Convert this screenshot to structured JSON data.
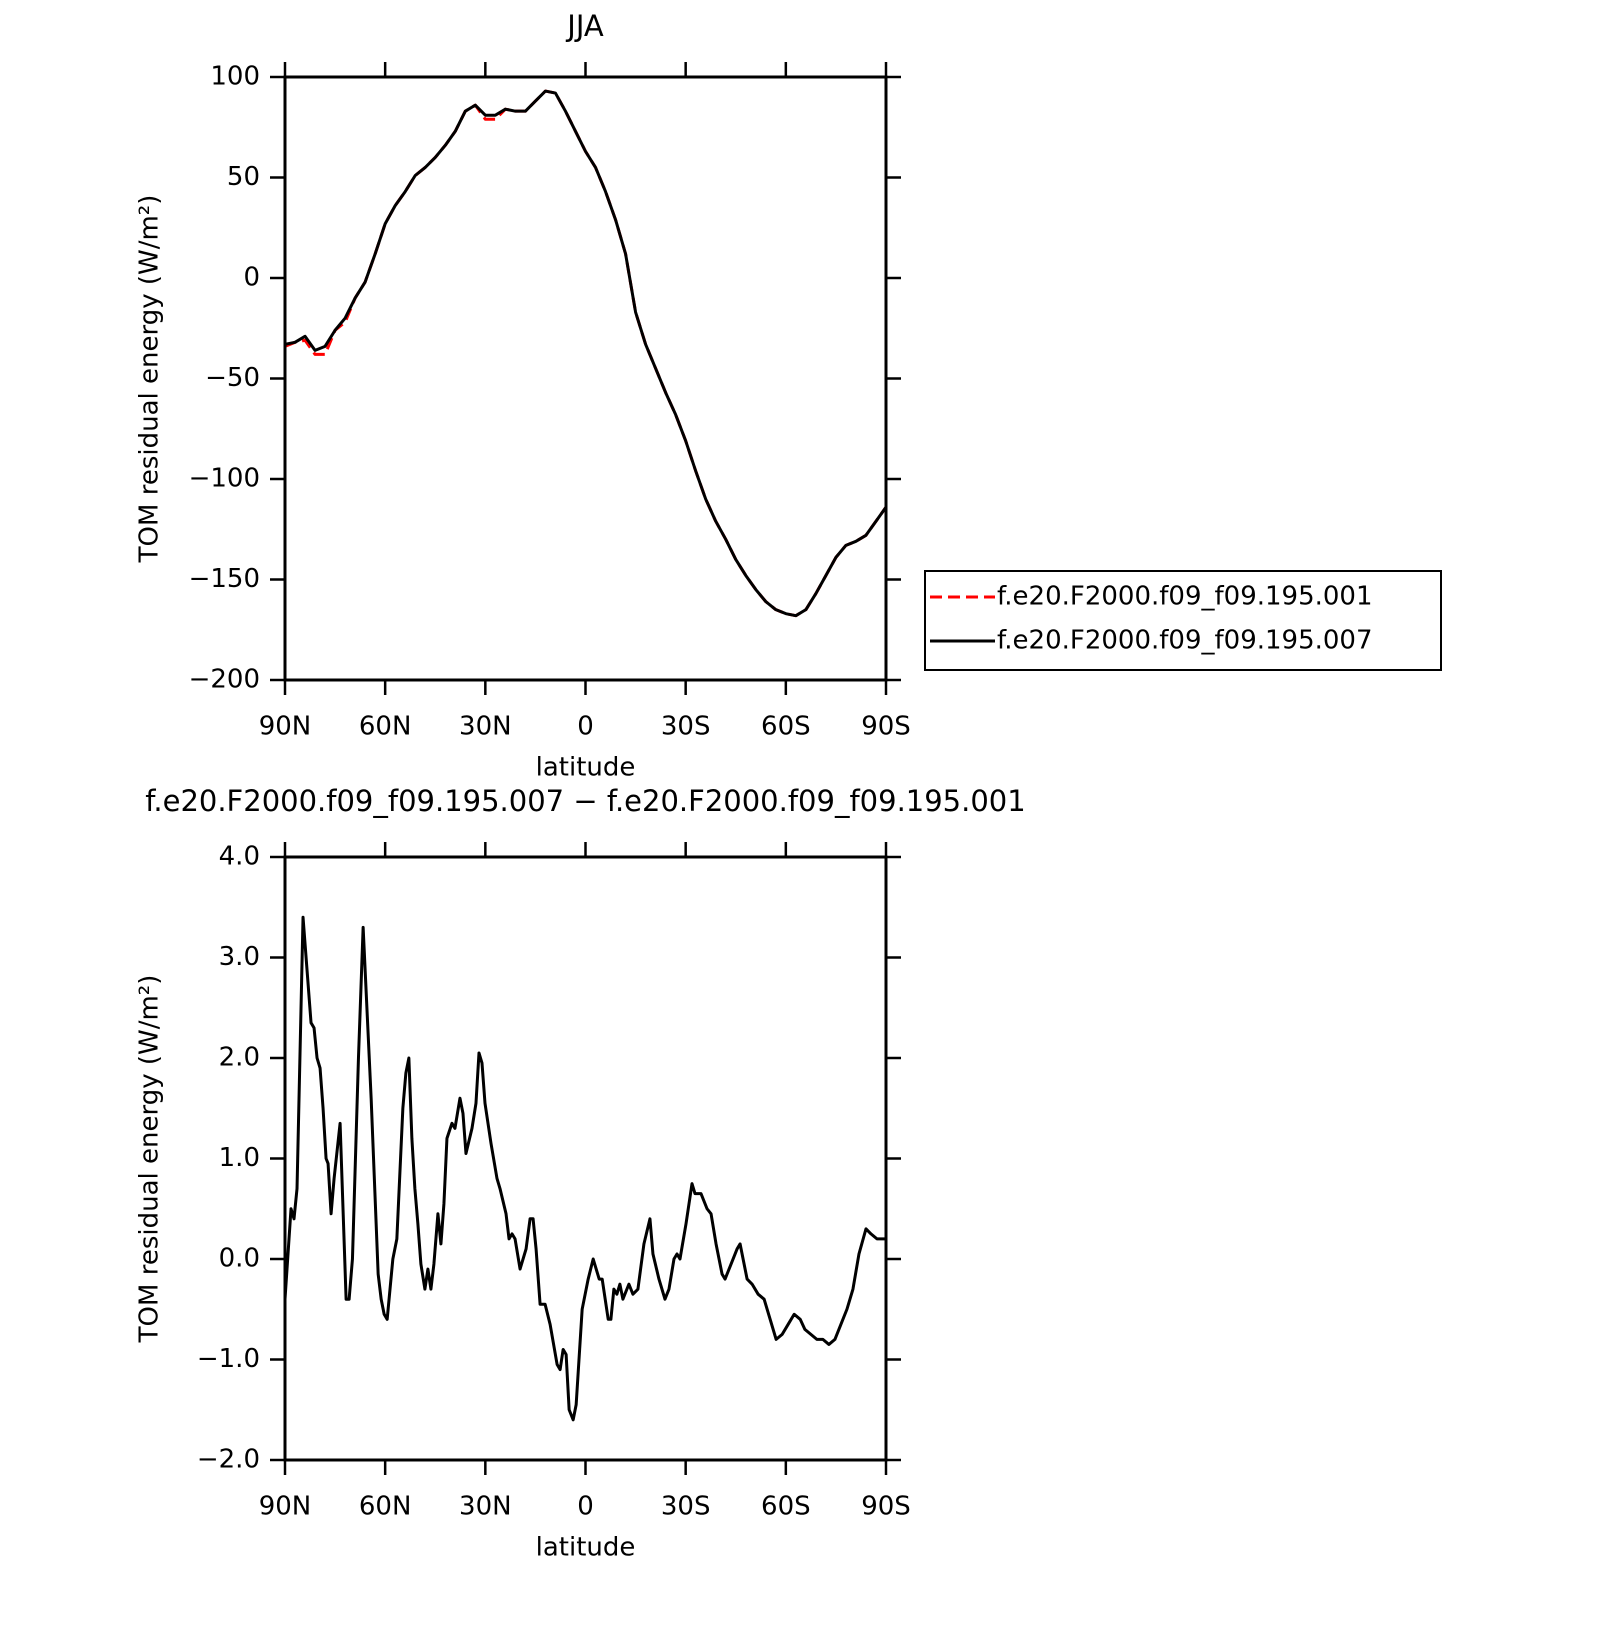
{
  "chart_data": [
    {
      "type": "line",
      "title": "JJA",
      "xlabel": "latitude",
      "ylabel": "TOM residual energy (W/m²)",
      "xlim": [
        90,
        -90
      ],
      "ylim": [
        -200,
        100
      ],
      "xticks": [
        {
          "value": 90,
          "label": "90N"
        },
        {
          "value": 60,
          "label": "60N"
        },
        {
          "value": 30,
          "label": "30N"
        },
        0,
        {
          "value": -30,
          "label": "30S"
        },
        {
          "value": -60,
          "label": "60S"
        },
        {
          "value": -90,
          "label": "90S"
        }
      ],
      "yticks": [
        {
          "value": -200,
          "label": "−200"
        },
        {
          "value": -150,
          "label": "−150"
        },
        {
          "value": -100,
          "label": "−100"
        },
        {
          "value": -50,
          "label": "−50"
        },
        0,
        50,
        100
      ],
      "legend": "right",
      "x": [
        90,
        87,
        84,
        81,
        78,
        75,
        72,
        69,
        66,
        63,
        60,
        57,
        54,
        51,
        48,
        45,
        42,
        39,
        36,
        33,
        30,
        27,
        24,
        21,
        18,
        15,
        12,
        9,
        6,
        3,
        0,
        -3,
        -6,
        -9,
        -12,
        -15,
        -18,
        -21,
        -24,
        -27,
        -30,
        -33,
        -36,
        -39,
        -42,
        -45,
        -48,
        -51,
        -54,
        -57,
        -60,
        -63,
        -66,
        -69,
        -72,
        -75,
        -78,
        -81,
        -84,
        -87,
        -90
      ],
      "series": [
        {
          "name": "f.e20.F2000.f09_f09.195.001",
          "color": "#ff0000",
          "dash": true,
          "values": [
            -34,
            -32,
            -31,
            -38,
            -38,
            -26,
            -22,
            -10,
            -2,
            12,
            27,
            36,
            43,
            51,
            55,
            60,
            66,
            73,
            83,
            86,
            79,
            79,
            84,
            83,
            83,
            88,
            93,
            92,
            83,
            73,
            63,
            55,
            43,
            29,
            12,
            -17,
            -33,
            -45,
            -57,
            -68,
            -81,
            -96,
            -110,
            -121,
            -130,
            -140,
            -148,
            -155,
            -161,
            -165,
            -167,
            -168,
            -165,
            -157,
            -148,
            -139,
            -133,
            -131,
            -128,
            -121,
            -114
          ]
        },
        {
          "name": "f.e20.F2000.f09_f09.195.007",
          "color": "#000000",
          "dash": false,
          "values": [
            -33,
            -32,
            -29,
            -36,
            -34,
            -26,
            -20,
            -10,
            -2,
            12,
            27,
            36,
            43,
            51,
            55,
            60,
            66,
            73,
            83,
            86,
            81,
            81,
            84,
            83,
            83,
            88,
            93,
            92,
            83,
            73,
            63,
            55,
            43,
            29,
            12,
            -17,
            -33,
            -45,
            -57,
            -68,
            -81,
            -96,
            -110,
            -121,
            -130,
            -140,
            -148,
            -155,
            -161,
            -165,
            -167,
            -168,
            -165,
            -157,
            -148,
            -139,
            -133,
            -131,
            -128,
            -121,
            -114
          ]
        }
      ]
    },
    {
      "type": "line",
      "title": "f.e20.F2000.f09_f09.195.007 − f.e20.F2000.f09_f09.195.001",
      "xlabel": "latitude",
      "ylabel": "TOM residual energy (W/m²)",
      "xlim": [
        90,
        -90
      ],
      "ylim": [
        -2,
        4
      ],
      "xticks": [
        {
          "value": 90,
          "label": "90N"
        },
        {
          "value": 60,
          "label": "60N"
        },
        {
          "value": 30,
          "label": "30N"
        },
        0,
        {
          "value": -30,
          "label": "30S"
        },
        {
          "value": -60,
          "label": "60S"
        },
        {
          "value": -90,
          "label": "90S"
        }
      ],
      "yticks": [
        {
          "value": -2,
          "label": "−2.0"
        },
        {
          "value": -1,
          "label": "−1.0"
        },
        {
          "value": 0,
          "label": "0.0"
        },
        {
          "value": 1,
          "label": "1.0"
        },
        {
          "value": 2,
          "label": "2.0"
        },
        {
          "value": 3,
          "label": "3.0"
        },
        {
          "value": 4,
          "label": "4.0"
        }
      ],
      "color": "#000000",
      "x": [
        90,
        88.2,
        87.3,
        86.4,
        84.6,
        82.2,
        81.3,
        80.4,
        79.5,
        78.6,
        77.7,
        77.1,
        76.2,
        75.3,
        73.5,
        71.7,
        70.8,
        69.8,
        68.0,
        66.6,
        64.2,
        62.1,
        61.2,
        60.3,
        59.4,
        57.7,
        56.5,
        54.7,
        53.8,
        52.9,
        52.0,
        51.1,
        50.2,
        49.3,
        48.1,
        47.2,
        46.3,
        45.4,
        44.2,
        43.3,
        42.4,
        41.5,
        40.0,
        39.1,
        37.6,
        36.7,
        35.8,
        34.0,
        32.8,
        31.9,
        31.0,
        30.1,
        28.3,
        26.5,
        25.6,
        23.8,
        22.9,
        22.0,
        21.1,
        19.6,
        17.8,
        16.6,
        15.7,
        14.8,
        13.6,
        12.1,
        10.6,
        8.5,
        7.6,
        6.7,
        5.8,
        4.9,
        3.7,
        2.8,
        1.0,
        -0.8,
        -2.3,
        -3.2,
        -4.1,
        -5.0,
        -6.8,
        -7.6,
        -8.5,
        -9.4,
        -10.3,
        -11.2,
        -13.0,
        -14.2,
        -15.7,
        -17.5,
        -19.3,
        -20.2,
        -22.0,
        -23.8,
        -25.0,
        -26.5,
        -27.4,
        -28.3,
        -30.1,
        -31.9,
        -32.8,
        -34.6,
        -36.4,
        -37.6,
        -39.1,
        -40.9,
        -41.8,
        -43.6,
        -45.4,
        -46.3,
        -48.4,
        -49.9,
        -51.7,
        -53.5,
        -55.3,
        -57.1,
        -58.9,
        -60.7,
        -62.5,
        -64.3,
        -65.7,
        -67.5,
        -69.3,
        -71.1,
        -72.9,
        -74.7,
        -76.5,
        -78.3,
        -80.1,
        -81.9,
        -84.0,
        -85.5,
        -87.3,
        -89.1,
        -90
      ],
      "values": [
        -0.4,
        0.5,
        0.4,
        0.7,
        3.4,
        2.35,
        2.3,
        2.0,
        1.9,
        1.5,
        1.0,
        0.95,
        0.45,
        0.8,
        1.35,
        -0.4,
        -0.4,
        0.0,
        2.0,
        3.3,
        1.6,
        -0.15,
        -0.4,
        -0.55,
        -0.6,
        0.0,
        0.2,
        1.5,
        1.85,
        2.0,
        1.2,
        0.7,
        0.35,
        -0.05,
        -0.3,
        -0.1,
        -0.3,
        -0.05,
        0.45,
        0.15,
        0.55,
        1.2,
        1.35,
        1.3,
        1.6,
        1.45,
        1.05,
        1.3,
        1.55,
        2.05,
        1.95,
        1.55,
        1.15,
        0.8,
        0.7,
        0.45,
        0.2,
        0.25,
        0.2,
        -0.1,
        0.1,
        0.4,
        0.4,
        0.1,
        -0.45,
        -0.45,
        -0.65,
        -1.05,
        -1.1,
        -0.9,
        -0.95,
        -1.5,
        -1.6,
        -1.45,
        -0.5,
        -0.2,
        0.0,
        -0.1,
        -0.2,
        -0.2,
        -0.6,
        -0.6,
        -0.3,
        -0.35,
        -0.25,
        -0.4,
        -0.25,
        -0.35,
        -0.3,
        0.15,
        0.4,
        0.05,
        -0.2,
        -0.4,
        -0.3,
        0.0,
        0.05,
        0.0,
        0.35,
        0.75,
        0.65,
        0.65,
        0.5,
        0.45,
        0.15,
        -0.15,
        -0.2,
        -0.05,
        0.1,
        0.15,
        -0.2,
        -0.25,
        -0.35,
        -0.4,
        -0.6,
        -0.8,
        -0.75,
        -0.65,
        -0.55,
        -0.6,
        -0.7,
        -0.75,
        -0.8,
        -0.8,
        -0.85,
        -0.8,
        -0.65,
        -0.5,
        -0.3,
        0.05,
        0.3,
        0.25,
        0.2,
        0.2,
        0.2
      ]
    }
  ]
}
